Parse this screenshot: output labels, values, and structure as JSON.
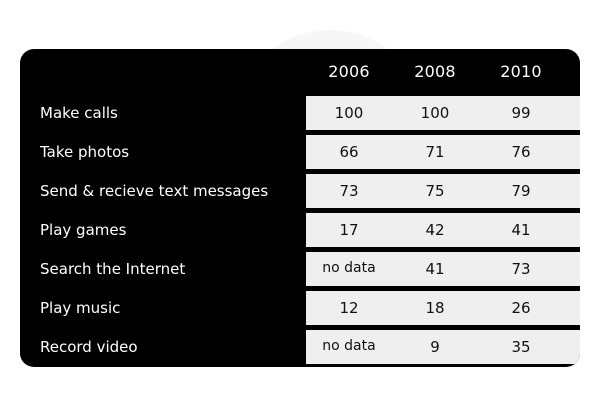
{
  "chart_data": {
    "type": "table",
    "columns": [
      "2006",
      "2008",
      "2010"
    ],
    "rows": [
      {
        "label": "Make calls",
        "values": [
          "100",
          "100",
          "99"
        ]
      },
      {
        "label": "Take photos",
        "values": [
          "66",
          "71",
          "76"
        ]
      },
      {
        "label": "Send & recieve text messages",
        "values": [
          "73",
          "75",
          "79"
        ]
      },
      {
        "label": "Play games",
        "values": [
          "17",
          "42",
          "41"
        ]
      },
      {
        "label": "Search the Internet",
        "values": [
          "no data",
          "41",
          "73"
        ]
      },
      {
        "label": "Play music",
        "values": [
          "12",
          "18",
          "26"
        ]
      },
      {
        "label": "Record video",
        "values": [
          "no data",
          "9",
          "35"
        ]
      }
    ]
  }
}
